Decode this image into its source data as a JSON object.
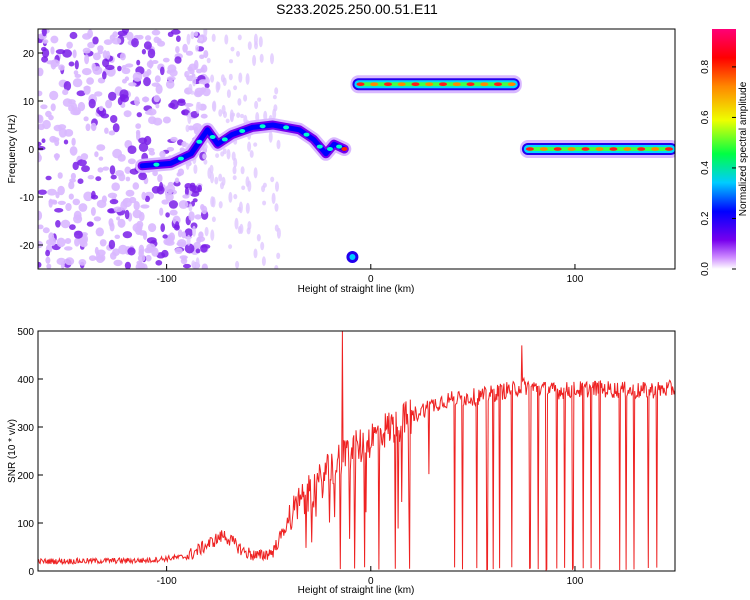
{
  "title": "S233.2025.250.00.51.E11",
  "chart_data": [
    {
      "type": "heatmap",
      "xlabel": "Height of straight line (km)",
      "ylabel": "Frequency (Hz)",
      "xlim": [
        -163,
        149
      ],
      "ylim": [
        -25,
        25
      ],
      "xticks": [
        {
          "v": -100,
          "label": "-100"
        },
        {
          "v": 0,
          "label": "0"
        },
        {
          "v": 100,
          "label": "100"
        }
      ],
      "yticks": [
        {
          "v": 20,
          "label": "20"
        },
        {
          "v": 10,
          "label": "10"
        },
        {
          "v": 0,
          "label": "0"
        },
        {
          "v": -10,
          "label": "-10"
        },
        {
          "v": -20,
          "label": "-20"
        }
      ],
      "colorbar": {
        "label": "Normalized spectral amplitude",
        "range": [
          0,
          0.95
        ],
        "ticks": [
          {
            "v": 0.0,
            "label": "0.0"
          },
          {
            "v": 0.2,
            "label": "0.2"
          },
          {
            "v": 0.4,
            "label": "0.4"
          },
          {
            "v": 0.6,
            "label": "0.6"
          },
          {
            "v": 0.8,
            "label": "0.8"
          }
        ]
      },
      "features": [
        {
          "name": "noise-region",
          "x_range": [
            -163,
            -88
          ],
          "freq_range": [
            -25,
            25
          ],
          "amplitude": 0.05
        },
        {
          "name": "rising-trace",
          "points": [
            [
              -112,
              -3.5
            ],
            [
              -98,
              -3
            ],
            [
              -88,
              -1
            ],
            [
              -80,
              4
            ],
            [
              -75,
              1
            ],
            [
              -68,
              3
            ],
            [
              -58,
              4.5
            ],
            [
              -48,
              5
            ],
            [
              -35,
              4
            ],
            [
              -28,
              2
            ],
            [
              -22,
              -1
            ],
            [
              -18,
              1
            ],
            [
              -13,
              0
            ]
          ],
          "amplitude": 0.5
        },
        {
          "name": "upper-band",
          "x_range": [
            -8,
            72
          ],
          "freq": 13.5,
          "amplitude": 0.85
        },
        {
          "name": "lower-band",
          "x_range": [
            75,
            149
          ],
          "freq": 0,
          "amplitude": 0.9
        },
        {
          "name": "isolated-spot",
          "x": -9,
          "freq": -22.5,
          "amplitude": 0.3
        }
      ]
    },
    {
      "type": "line",
      "xlabel": "Height of straight line (km)",
      "ylabel": "SNR (10 * v/v)",
      "xlim": [
        -163,
        149
      ],
      "ylim": [
        0,
        500
      ],
      "xticks": [
        {
          "v": -100,
          "label": "-100"
        },
        {
          "v": 0,
          "label": "0"
        },
        {
          "v": 100,
          "label": "100"
        }
      ],
      "yticks": [
        {
          "v": 0,
          "label": "0"
        },
        {
          "v": 100,
          "label": "100"
        },
        {
          "v": 200,
          "label": "200"
        },
        {
          "v": 300,
          "label": "300"
        },
        {
          "v": 400,
          "label": "400"
        },
        {
          "v": 500,
          "label": "500"
        }
      ],
      "color": "#ee2222",
      "profile": [
        [
          -163,
          20
        ],
        [
          -110,
          22
        ],
        [
          -90,
          30
        ],
        [
          -80,
          55
        ],
        [
          -72,
          75
        ],
        [
          -62,
          40
        ],
        [
          -55,
          30
        ],
        [
          -48,
          40
        ],
        [
          -42,
          90
        ],
        [
          -35,
          140
        ],
        [
          -28,
          170
        ],
        [
          -20,
          210
        ],
        [
          -12,
          240
        ],
        [
          -5,
          260
        ],
        [
          5,
          290
        ],
        [
          15,
          310
        ],
        [
          25,
          335
        ],
        [
          35,
          355
        ],
        [
          45,
          360
        ],
        [
          55,
          365
        ],
        [
          65,
          375
        ],
        [
          75,
          385
        ],
        [
          90,
          375
        ],
        [
          110,
          380
        ],
        [
          130,
          375
        ],
        [
          149,
          380
        ]
      ],
      "spikes": [
        {
          "x": -14,
          "y": 500
        },
        {
          "x": 74,
          "y": 470
        }
      ],
      "dropouts": [
        -15,
        -8,
        -3,
        4,
        12,
        19,
        41,
        45,
        52,
        57,
        60,
        63,
        69,
        78,
        82,
        86,
        91,
        95,
        99,
        104,
        108,
        112,
        122,
        125,
        129,
        136,
        140
      ]
    }
  ]
}
